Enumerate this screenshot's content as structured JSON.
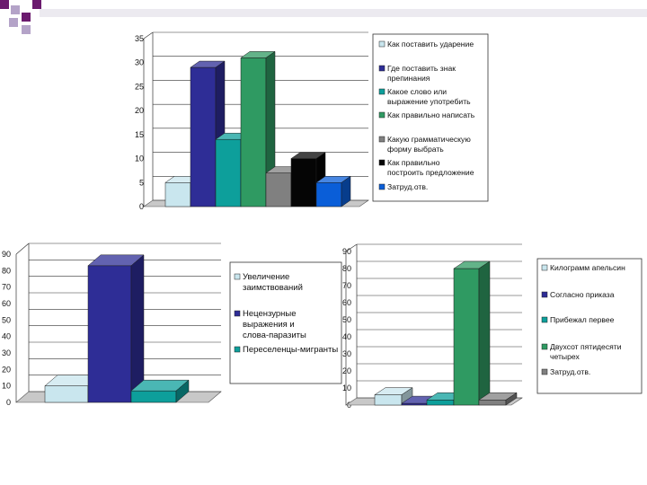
{
  "chart_data": [
    {
      "type": "bar",
      "title": "",
      "xlabel": "",
      "ylabel": "",
      "ylim": [
        0,
        35
      ],
      "yticks": [
        "0",
        "5",
        "10",
        "15",
        "20",
        "25",
        "30",
        "35"
      ],
      "grid": true,
      "legend_position": "right",
      "series": [
        {
          "name": "Как поставить ударение",
          "values": [
            5
          ],
          "color": "#c9e6ee"
        },
        {
          "name": "Где поставить знак препинания",
          "values": [
            29
          ],
          "color": "#2e2d96"
        },
        {
          "name": "Какое слово или выражение употребить",
          "values": [
            14
          ],
          "color": "#0d9f9b"
        },
        {
          "name": "Как правильно написать",
          "values": [
            31
          ],
          "color": "#2f9a62"
        },
        {
          "name": "Какую грамматическую форму выбрать",
          "values": [
            7
          ],
          "color": "#808080"
        },
        {
          "name": "Как правильно построить предложение",
          "values": [
            10
          ],
          "color": "#050505"
        },
        {
          "name": "Затруд.отв.",
          "values": [
            5
          ],
          "color": "#0a5ed8"
        }
      ]
    },
    {
      "type": "bar",
      "title": "",
      "xlabel": "",
      "ylabel": "",
      "ylim": [
        0,
        90
      ],
      "yticks": [
        "0",
        "10",
        "20",
        "30",
        "40",
        "50",
        "60",
        "70",
        "80",
        "90"
      ],
      "grid": true,
      "legend_position": "right",
      "series": [
        {
          "name": "Увеличение заимствований",
          "values": [
            10
          ],
          "color": "#c9e6ee"
        },
        {
          "name": "Нецензурные выражения и слова-паразиты",
          "values": [
            83
          ],
          "color": "#2e2d96"
        },
        {
          "name": "Переселенцы-мигранты",
          "values": [
            7
          ],
          "color": "#0d9f9b"
        }
      ]
    },
    {
      "type": "bar",
      "title": "",
      "xlabel": "",
      "ylabel": "",
      "ylim": [
        0,
        90
      ],
      "yticks": [
        "0",
        "10",
        "20",
        "30",
        "40",
        "50",
        "60",
        "70",
        "80",
        "90"
      ],
      "grid": true,
      "legend_position": "right",
      "series": [
        {
          "name": "Килограмм апельсин",
          "values": [
            6
          ],
          "color": "#c9e6ee"
        },
        {
          "name": "Согласно приказа",
          "values": [
            1
          ],
          "color": "#2e2d96"
        },
        {
          "name": "Прибежал первее",
          "values": [
            3
          ],
          "color": "#0d9f9b"
        },
        {
          "name": "Двухсот пятидесяти четырех",
          "values": [
            80
          ],
          "color": "#2f9a62"
        },
        {
          "name": "Затруд.отв.",
          "values": [
            3
          ],
          "color": "#808080"
        }
      ]
    }
  ]
}
